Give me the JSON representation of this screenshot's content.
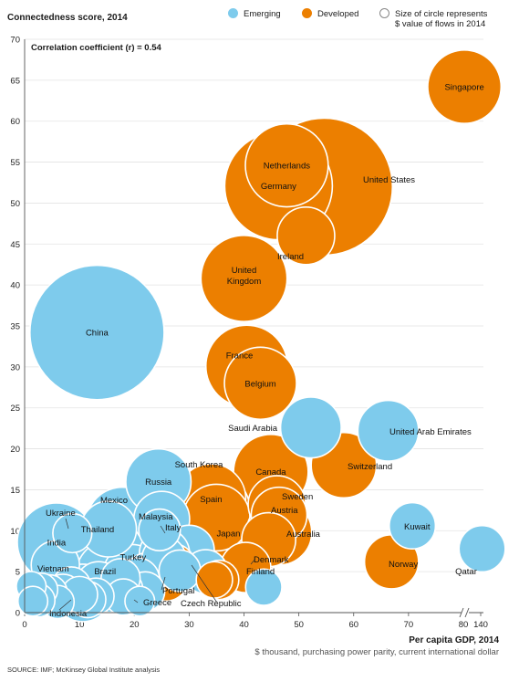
{
  "chart_data": {
    "type": "scatter",
    "ylabel": "Connectedness score, 2014",
    "xlabel": "Per capita GDP, 2014",
    "xsubtitle": "$ thousand, purchasing power parity, current international dollar",
    "annotation": "Correlation coefficient (r) = 0.54",
    "source": "SOURCE: IMF; McKinsey Global Institute analysis",
    "legend": {
      "emerging": "Emerging",
      "developed": "Developed",
      "size_note_line1": "Size of circle represents",
      "size_note_line2": "$ value of flows in 2014"
    },
    "colors": {
      "emerging": "#7ecbec",
      "developed": "#ec7f00"
    },
    "ylim": [
      0,
      70
    ],
    "yticks": [
      0,
      5,
      10,
      15,
      20,
      25,
      30,
      35,
      40,
      45,
      50,
      55,
      60,
      65,
      70
    ],
    "xlim": [
      0,
      140
    ],
    "xticks": [
      0,
      10,
      20,
      30,
      40,
      50,
      60,
      70,
      80,
      140
    ],
    "xticklabels": [
      "0",
      "10",
      "20",
      "30",
      "40",
      "50",
      "60",
      "70",
      "80",
      "140"
    ],
    "axis_break_between": [
      80,
      140
    ],
    "points": [
      {
        "name": "United States",
        "x": 54.6,
        "y": 52.0,
        "size": 1.0,
        "group": "developed"
      },
      {
        "name": "China",
        "x": 13.2,
        "y": 34.2,
        "size": 0.96,
        "group": "emerging"
      },
      {
        "name": "Germany",
        "x": 46.3,
        "y": 52.1,
        "size": 0.6,
        "group": "developed"
      },
      {
        "name": "Netherlands",
        "x": 47.8,
        "y": 54.6,
        "size": 0.34,
        "group": "developed"
      },
      {
        "name": "Japan",
        "x": 37.5,
        "y": 9.7,
        "size": 0.62,
        "group": "developed"
      },
      {
        "name": "United Kingdom",
        "x": 40.0,
        "y": 40.8,
        "size": 0.37,
        "group": "developed"
      },
      {
        "name": "France",
        "x": 40.5,
        "y": 30.1,
        "size": 0.33,
        "group": "developed"
      },
      {
        "name": "Belgium",
        "x": 43.0,
        "y": 28.0,
        "size": 0.25,
        "group": "developed"
      },
      {
        "name": "Singapore",
        "x": 83.1,
        "y": 64.2,
        "size": 0.26,
        "group": "developed"
      },
      {
        "name": "Ireland",
        "x": 51.3,
        "y": 46.0,
        "size": 0.15,
        "group": "developed"
      },
      {
        "name": "Canada",
        "x": 44.9,
        "y": 17.2,
        "size": 0.27,
        "group": "developed"
      },
      {
        "name": "Switzerland",
        "x": 58.2,
        "y": 18.0,
        "size": 0.2,
        "group": "developed"
      },
      {
        "name": "Spain",
        "x": 34.0,
        "y": 13.9,
        "size": 0.23,
        "group": "developed"
      },
      {
        "name": "Italy",
        "x": 35.0,
        "y": 11.6,
        "size": 0.21,
        "group": "developed"
      },
      {
        "name": "South Korea",
        "x": 34.5,
        "y": 12.6,
        "size": 0.25,
        "group": "developed"
      },
      {
        "name": "Sweden",
        "x": 46.0,
        "y": 13.2,
        "size": 0.15,
        "group": "developed"
      },
      {
        "name": "Austria",
        "x": 46.4,
        "y": 11.9,
        "size": 0.14,
        "group": "developed"
      },
      {
        "name": "Australia",
        "x": 46.4,
        "y": 9.8,
        "size": 0.2,
        "group": "developed"
      },
      {
        "name": "Denmark",
        "x": 44.5,
        "y": 8.9,
        "size": 0.13,
        "group": "developed"
      },
      {
        "name": "Finland",
        "x": 40.3,
        "y": 5.5,
        "size": 0.11,
        "group": "developed"
      },
      {
        "name": "Norway",
        "x": 66.9,
        "y": 6.2,
        "size": 0.13,
        "group": "developed"
      },
      {
        "name": "Portugal",
        "x": 27.0,
        "y": 5.6,
        "size": 0.09,
        "group": "developed"
      },
      {
        "name": "Czech Republic",
        "x": 35.5,
        "y": 4.0,
        "size": 0.06,
        "group": "developed"
      },
      {
        "name": "Greece",
        "x": 25.8,
        "y": 4.1,
        "size": 0.08,
        "group": "developed"
      },
      {
        "name": "Saudi Arabia",
        "x": 52.2,
        "y": 22.6,
        "size": 0.17,
        "group": "emerging"
      },
      {
        "name": "United Arab Emirates",
        "x": 66.3,
        "y": 22.2,
        "size": 0.17,
        "group": "emerging"
      },
      {
        "name": "Russia",
        "x": 24.4,
        "y": 16.0,
        "size": 0.2,
        "group": "emerging"
      },
      {
        "name": "Mexico",
        "x": 17.8,
        "y": 10.9,
        "size": 0.25,
        "group": "emerging"
      },
      {
        "name": "Malaysia",
        "x": 25.0,
        "y": 11.4,
        "size": 0.14,
        "group": "emerging"
      },
      {
        "name": "Thailand",
        "x": 15.3,
        "y": 10.2,
        "size": 0.14,
        "group": "emerging"
      },
      {
        "name": "India",
        "x": 5.8,
        "y": 8.6,
        "size": 0.3,
        "group": "emerging"
      },
      {
        "name": "Ukraine",
        "x": 8.7,
        "y": 9.7,
        "size": 0.06,
        "group": "emerging"
      },
      {
        "name": "Vietnam",
        "x": 5.6,
        "y": 5.8,
        "size": 0.1,
        "group": "emerging"
      },
      {
        "name": "Brazil",
        "x": 16.0,
        "y": 4.5,
        "size": 0.26,
        "group": "emerging"
      },
      {
        "name": "Turkey",
        "x": 19.6,
        "y": 4.8,
        "size": 0.15,
        "group": "emerging"
      },
      {
        "name": "Indonesia",
        "x": 10.6,
        "y": 2.4,
        "size": 0.15,
        "group": "emerging"
      },
      {
        "name": "Kuwait",
        "x": 70.7,
        "y": 10.6,
        "size": 0.09,
        "group": "emerging"
      },
      {
        "name": "Qatar",
        "x": 136.0,
        "y": 7.8,
        "size": 0.09,
        "group": "emerging"
      },
      {
        "name": "",
        "x": 24.6,
        "y": 10.1,
        "size": 0.07,
        "group": "emerging"
      },
      {
        "name": "",
        "x": 30.0,
        "y": 7.6,
        "size": 0.11,
        "group": "emerging"
      },
      {
        "name": "",
        "x": 25.5,
        "y": 7.2,
        "size": 0.11,
        "group": "emerging"
      },
      {
        "name": "",
        "x": 25.4,
        "y": 6.6,
        "size": 0.08,
        "group": "emerging"
      },
      {
        "name": "",
        "x": 33.0,
        "y": 5.0,
        "size": 0.08,
        "group": "emerging"
      },
      {
        "name": "",
        "x": 28.3,
        "y": 5.1,
        "size": 0.07,
        "group": "emerging"
      },
      {
        "name": "",
        "x": 22.5,
        "y": 4.5,
        "size": 0.09,
        "group": "emerging"
      },
      {
        "name": "",
        "x": 20.6,
        "y": 4.0,
        "size": 0.08,
        "group": "emerging"
      },
      {
        "name": "",
        "x": 22.0,
        "y": 2.6,
        "size": 0.06,
        "group": "emerging"
      },
      {
        "name": "",
        "x": 18.0,
        "y": 2.8,
        "size": 0.06,
        "group": "emerging"
      },
      {
        "name": "",
        "x": 18.0,
        "y": 1.9,
        "size": 0.05,
        "group": "emerging"
      },
      {
        "name": "",
        "x": 17.5,
        "y": 4.2,
        "size": 0.06,
        "group": "emerging"
      },
      {
        "name": "",
        "x": 13.5,
        "y": 3.4,
        "size": 0.09,
        "group": "emerging"
      },
      {
        "name": "",
        "x": 13.0,
        "y": 2.0,
        "size": 0.05,
        "group": "emerging"
      },
      {
        "name": "",
        "x": 11.5,
        "y": 1.6,
        "size": 0.05,
        "group": "emerging"
      },
      {
        "name": "",
        "x": 10.0,
        "y": 2.2,
        "size": 0.05,
        "group": "emerging"
      },
      {
        "name": "",
        "x": 8.5,
        "y": 3.2,
        "size": 0.06,
        "group": "emerging"
      },
      {
        "name": "",
        "x": 7.0,
        "y": 2.3,
        "size": 0.06,
        "group": "emerging"
      },
      {
        "name": "",
        "x": 6.0,
        "y": 1.3,
        "size": 0.04,
        "group": "emerging"
      },
      {
        "name": "",
        "x": 4.5,
        "y": 2.4,
        "size": 0.05,
        "group": "emerging"
      },
      {
        "name": "",
        "x": 3.0,
        "y": 2.8,
        "size": 0.04,
        "group": "emerging"
      },
      {
        "name": "",
        "x": 2.5,
        "y": 1.5,
        "size": 0.04,
        "group": "emerging"
      },
      {
        "name": "",
        "x": 1.2,
        "y": 3.2,
        "size": 0.03,
        "group": "emerging"
      },
      {
        "name": "",
        "x": 1.5,
        "y": 1.4,
        "size": 0.03,
        "group": "emerging"
      },
      {
        "name": "",
        "x": 21.0,
        "y": 1.4,
        "size": 0.03,
        "group": "emerging"
      },
      {
        "name": "",
        "x": 43.6,
        "y": 3.1,
        "size": 0.05,
        "group": "emerging"
      },
      {
        "name": "",
        "x": 34.6,
        "y": 4.0,
        "size": 0.05,
        "group": "developed"
      }
    ]
  }
}
